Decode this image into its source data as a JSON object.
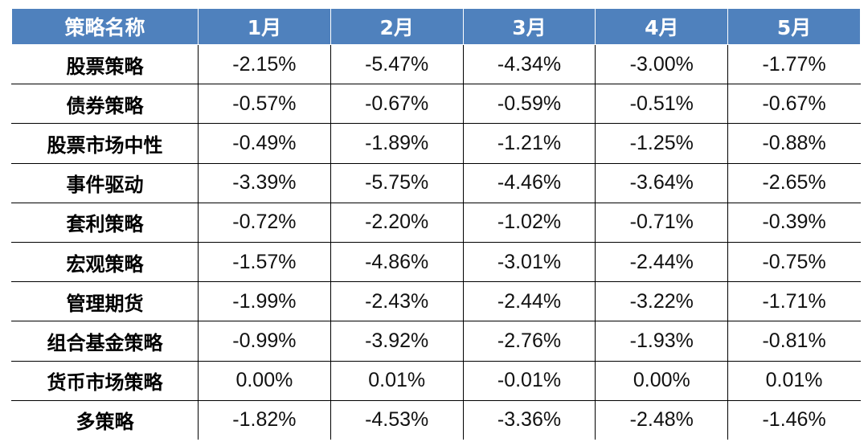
{
  "chart_data": {
    "type": "table",
    "columns": [
      "策略名称",
      "1月",
      "2月",
      "3月",
      "4月",
      "5月"
    ],
    "rows": [
      {
        "name": "股票策略",
        "values": [
          "-2.15%",
          "-5.47%",
          "-4.34%",
          "-3.00%",
          "-1.77%"
        ]
      },
      {
        "name": "债券策略",
        "values": [
          "-0.57%",
          "-0.67%",
          "-0.59%",
          "-0.51%",
          "-0.67%"
        ]
      },
      {
        "name": "股票市场中性",
        "values": [
          "-0.49%",
          "-1.89%",
          "-1.21%",
          "-1.25%",
          "-0.88%"
        ]
      },
      {
        "name": "事件驱动",
        "values": [
          "-3.39%",
          "-5.75%",
          "-4.46%",
          "-3.64%",
          "-2.65%"
        ]
      },
      {
        "name": "套利策略",
        "values": [
          "-0.72%",
          "-2.20%",
          "-1.02%",
          "-0.71%",
          "-0.39%"
        ]
      },
      {
        "name": "宏观策略",
        "values": [
          "-1.57%",
          "-4.86%",
          "-3.01%",
          "-2.44%",
          "-0.75%"
        ]
      },
      {
        "name": "管理期货",
        "values": [
          "-1.99%",
          "-2.43%",
          "-2.44%",
          "-3.22%",
          "-1.71%"
        ]
      },
      {
        "name": "组合基金策略",
        "values": [
          "-0.99%",
          "-3.92%",
          "-2.76%",
          "-1.93%",
          "-0.81%"
        ]
      },
      {
        "name": "货币市场策略",
        "values": [
          "0.00%",
          "0.01%",
          "-0.01%",
          "0.00%",
          "0.01%"
        ]
      },
      {
        "name": "多策略",
        "values": [
          "-1.82%",
          "-4.53%",
          "-3.36%",
          "-2.48%",
          "-1.46%"
        ]
      }
    ]
  },
  "colors": {
    "header_bg": "#4f81bd",
    "header_text": "#ffffff",
    "grid": "#000000"
  }
}
